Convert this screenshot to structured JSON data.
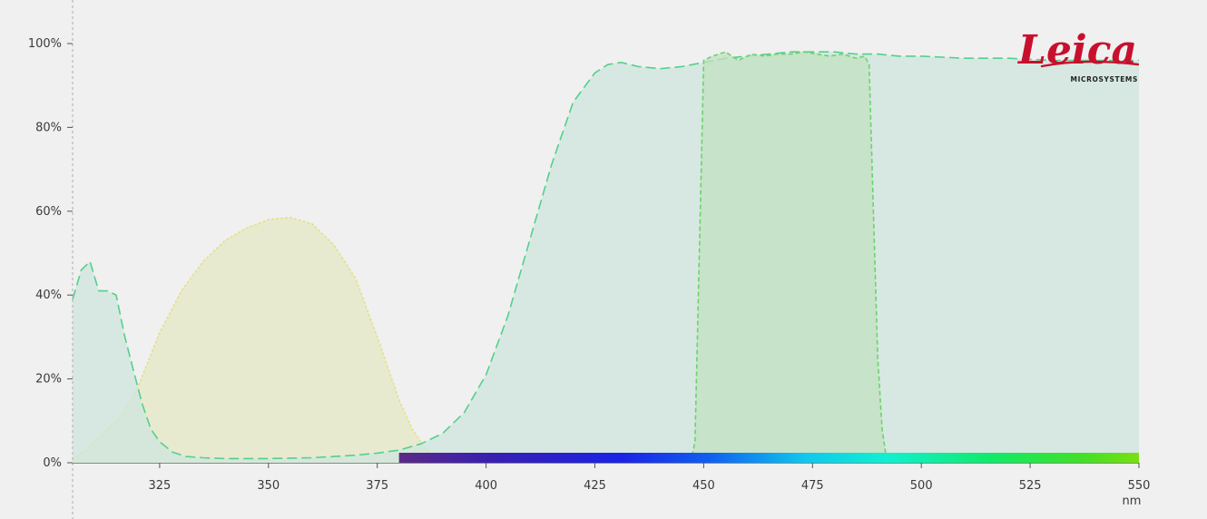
{
  "chart_data": {
    "type": "area",
    "title": "",
    "xlabel": "",
    "ylabel": "",
    "x_unit": "nm",
    "xlim": [
      305,
      550
    ],
    "ylim": [
      0,
      100
    ],
    "x_ticks": [
      325,
      350,
      375,
      400,
      425,
      450,
      475,
      500,
      525,
      550
    ],
    "x_tick_labels": [
      "325",
      "350",
      "375",
      "400",
      "425",
      "450",
      "475",
      "500",
      "525",
      "550"
    ],
    "y_ticks": [
      0,
      20,
      40,
      60,
      80,
      100
    ],
    "y_tick_labels": [
      "0%",
      "20%",
      "40%",
      "60%",
      "80%",
      "100%"
    ],
    "grid": false,
    "legend": "none",
    "spectrum_bar": {
      "start_nm": 380,
      "end_nm": 550
    },
    "series": [
      {
        "stroke": "#e3e08a",
        "fill": "#e6e8c6",
        "dash": "short",
        "x": [
          305,
          308,
          312,
          316,
          320,
          325,
          330,
          335,
          340,
          345,
          350,
          355,
          360,
          365,
          370,
          375,
          380,
          383,
          386,
          389,
          392,
          395
        ],
        "y": [
          1,
          3,
          7,
          11,
          18,
          31,
          41,
          48,
          53,
          56,
          58,
          58.5,
          57,
          52,
          44,
          30,
          15,
          8,
          3.5,
          1,
          0.3,
          0
        ]
      },
      {
        "stroke": "#54d08c",
        "fill": "#cfe6de",
        "dash": "long",
        "x": [
          305,
          307,
          309,
          311,
          313,
          315,
          317,
          319,
          321,
          323,
          325,
          328,
          331,
          335,
          340,
          350,
          360,
          370,
          375,
          380,
          385,
          390,
          395,
          400,
          405,
          410,
          415,
          420,
          425,
          428,
          431,
          435,
          440,
          445,
          450,
          455,
          460,
          465,
          470,
          475,
          480,
          485,
          490,
          495,
          500,
          510,
          520,
          530,
          540,
          550
        ],
        "y": [
          39,
          46,
          48,
          41,
          41,
          40,
          30,
          22,
          14,
          8,
          5,
          2.5,
          1.5,
          1.2,
          1,
          1,
          1.2,
          1.8,
          2.3,
          3,
          4.5,
          7,
          12,
          21,
          35,
          53,
          71,
          86,
          93,
          95,
          95.5,
          94.5,
          94,
          94.5,
          95.5,
          96.5,
          97,
          97.5,
          98,
          98,
          98,
          97.5,
          97.5,
          97,
          97,
          96.5,
          96.5,
          96,
          96,
          96
        ]
      },
      {
        "stroke": "#6cd36c",
        "fill": "#c2e2c0",
        "dash": "medium",
        "x": [
          447,
          448,
          449,
          450,
          452,
          455,
          458,
          461,
          464,
          467,
          470,
          473,
          476,
          479,
          482,
          485,
          487,
          488,
          489,
          490,
          491,
          492,
          493
        ],
        "y": [
          0,
          5,
          50,
          96,
          97,
          98,
          96,
          97.5,
          97,
          97.5,
          97.5,
          98,
          97.5,
          97,
          97.5,
          96.5,
          97,
          95,
          60,
          25,
          8,
          1,
          0
        ]
      }
    ]
  },
  "logo": {
    "name": "Leica",
    "tagline": "MICROSYSTEMS",
    "color": "#c8102e"
  }
}
